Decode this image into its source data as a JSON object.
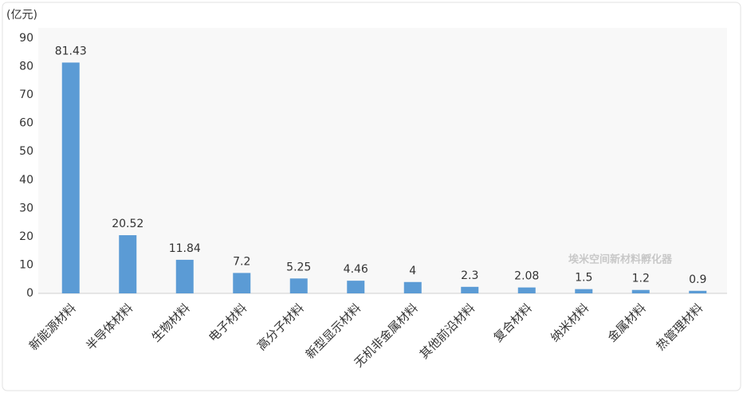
{
  "chart_data": {
    "type": "bar",
    "y_label": "(亿元)",
    "watermark": "埃米空间新材料孵化器",
    "categories": [
      "新能源材料",
      "半导体材料",
      "生物材料",
      "电子材料",
      "高分子材料",
      "新型显示材料",
      "无机非金属材料",
      "其他前沿材料",
      "复合材料",
      "纳米材料",
      "金属材料",
      "热管理材料"
    ],
    "values": [
      81.43,
      20.52,
      11.84,
      7.2,
      5.25,
      4.46,
      4,
      2.3,
      2.08,
      1.5,
      1.2,
      0.9
    ],
    "color": "#5b9bd5",
    "ylim": [
      0,
      90
    ],
    "yticks": [
      0,
      10,
      20,
      30,
      40,
      50,
      60,
      70,
      80,
      90
    ],
    "grid": false,
    "data_labels": true
  }
}
